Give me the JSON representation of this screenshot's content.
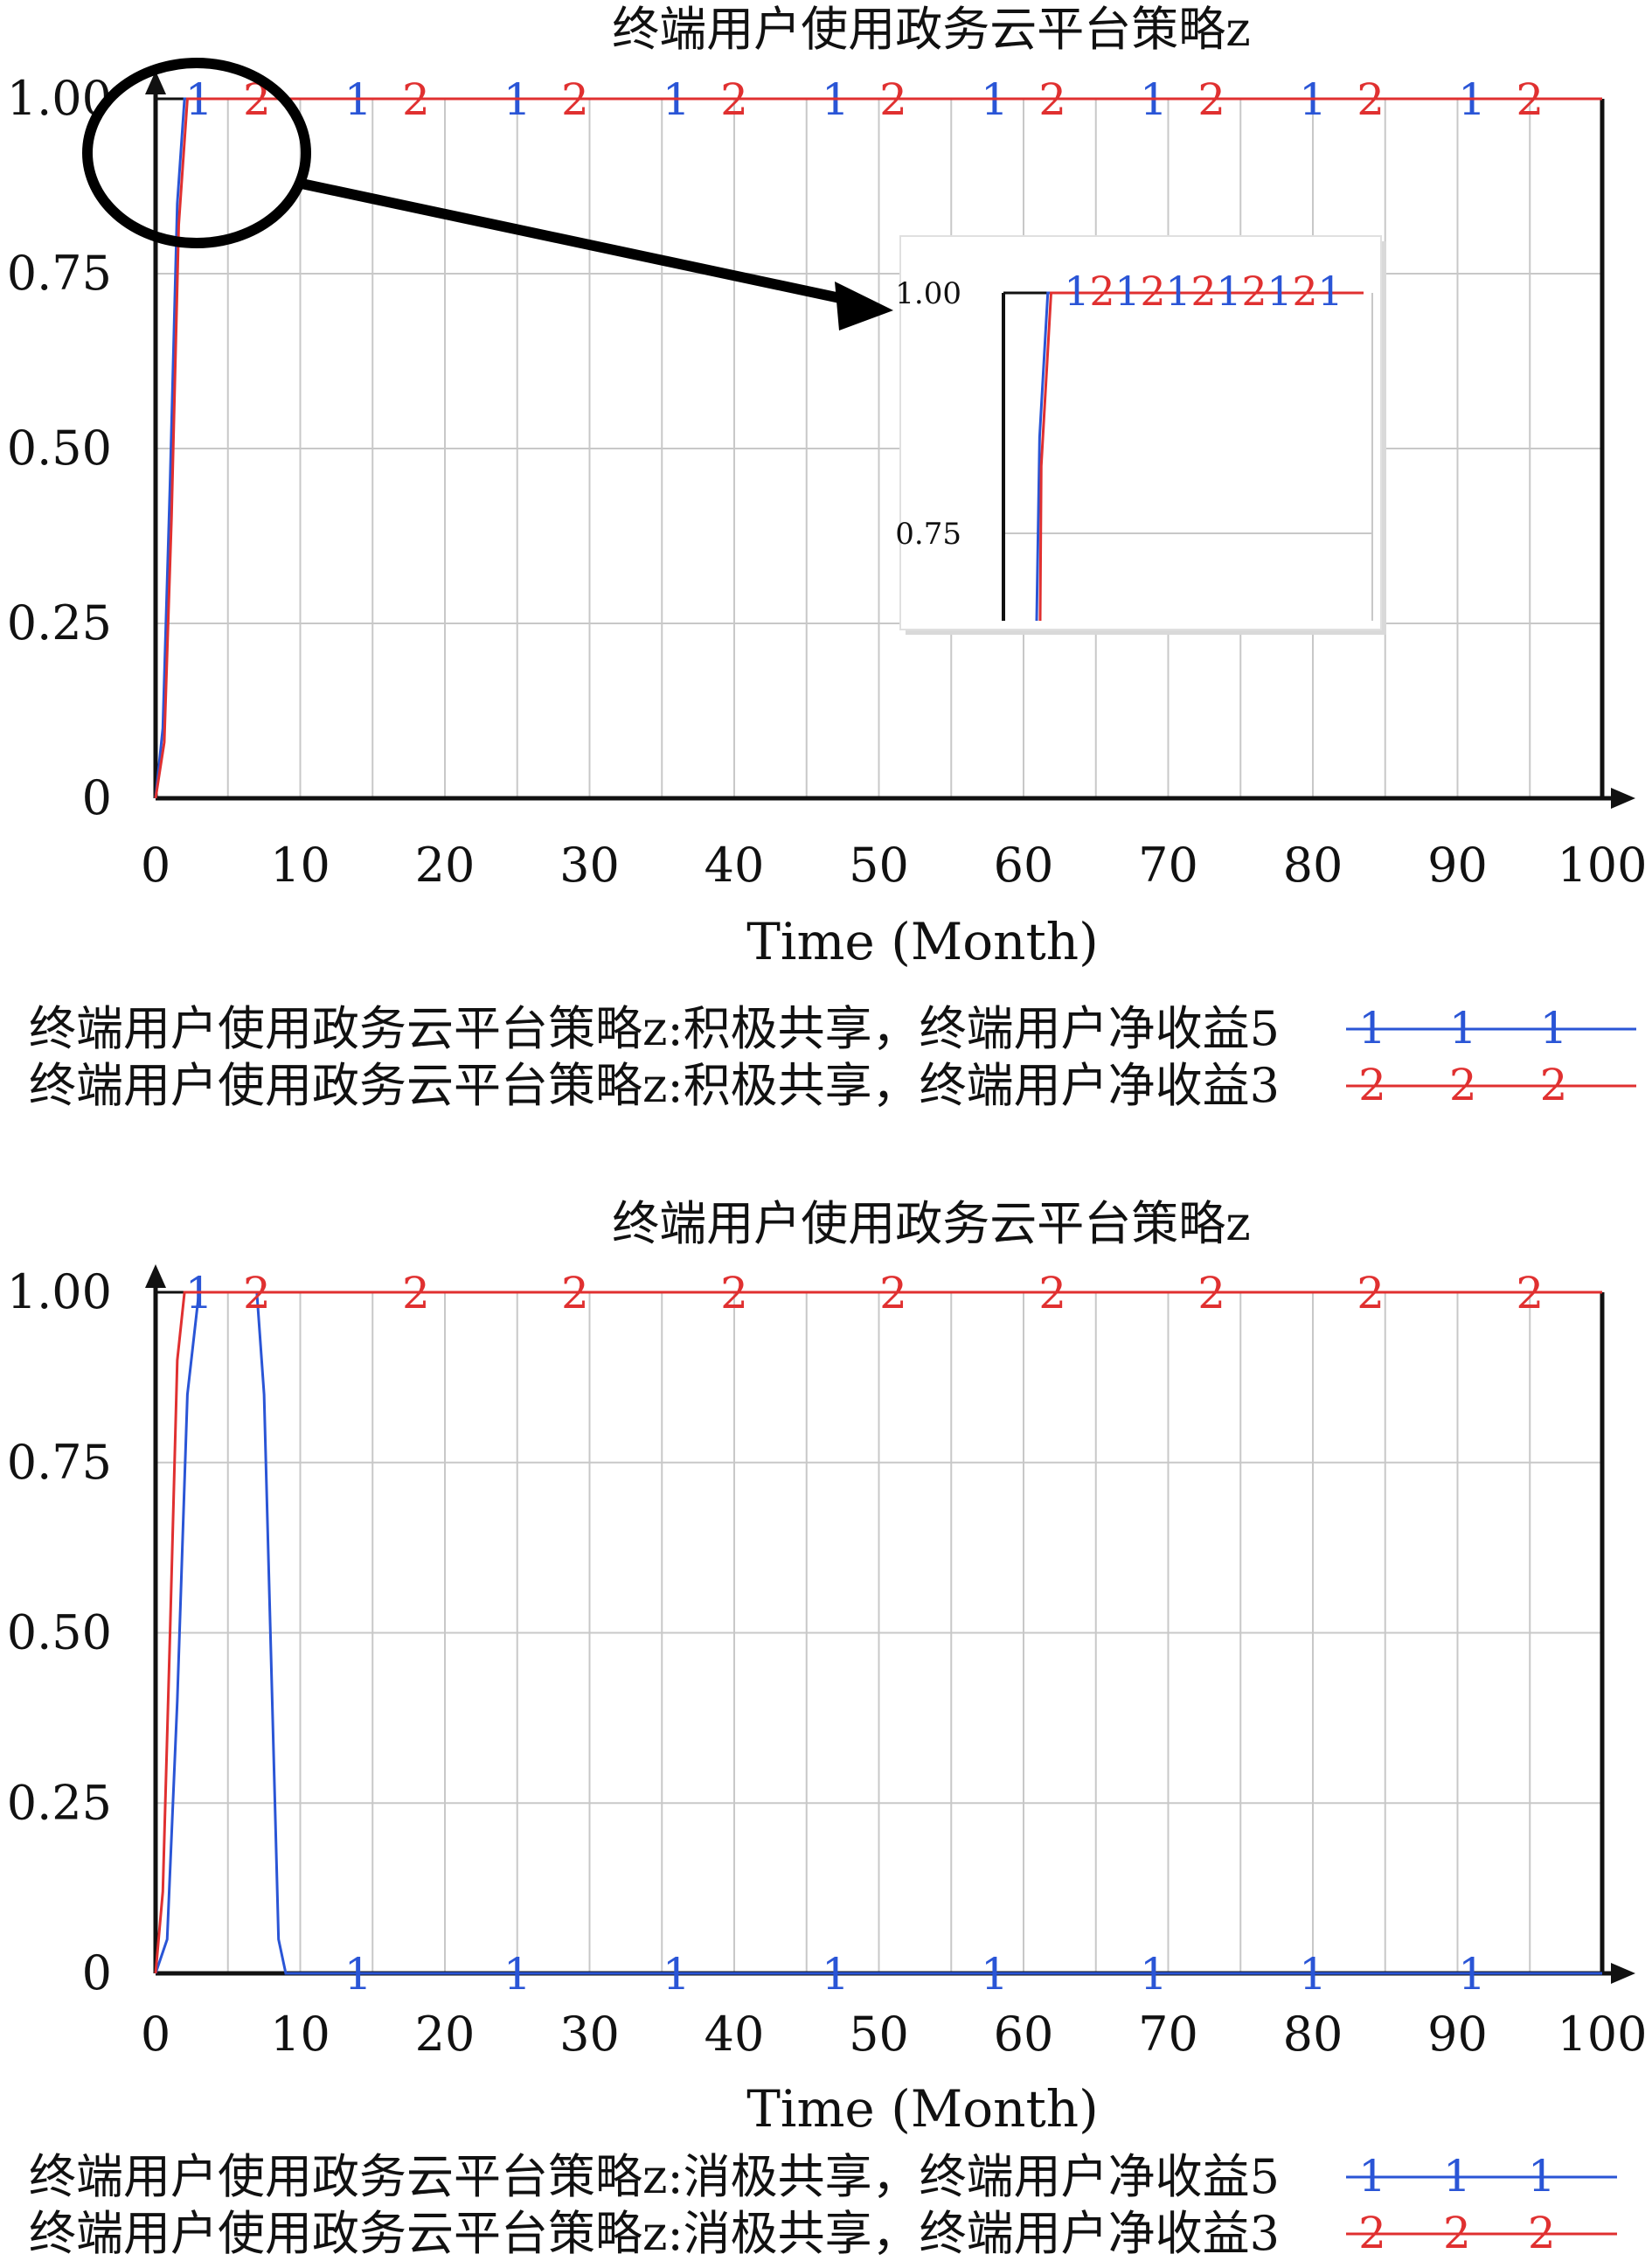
{
  "chart_data": [
    {
      "type": "line",
      "title": "终端用户使用政务云平台策略z",
      "xlabel": "Time (Month)",
      "ylabel": "",
      "xlim": [
        0,
        100
      ],
      "ylim": [
        0,
        1
      ],
      "x_ticks": [
        "0",
        "10",
        "20",
        "30",
        "40",
        "50",
        "60",
        "70",
        "80",
        "90",
        "100"
      ],
      "y_ticks": [
        "0",
        "0.25",
        "0.50",
        "0.75",
        "1.00"
      ],
      "grid": true,
      "legend_position": "bottom",
      "series": [
        {
          "name": "终端用户使用政务云平台策略z:积极共享，终端用户净收益5",
          "marker": "1",
          "color": "#2a55d6",
          "x": [
            0,
            0.5,
            1,
            1.5,
            2,
            3,
            100
          ],
          "y": [
            0,
            0.1,
            0.45,
            0.85,
            1.0,
            1.0,
            1.0
          ]
        },
        {
          "name": "终端用户使用政务云平台策略z:积极共享，终端用户净收益3",
          "marker": "2",
          "color": "#e03030",
          "x": [
            0,
            0.6,
            1.1,
            1.6,
            2.2,
            3,
            100
          ],
          "y": [
            0,
            0.08,
            0.4,
            0.82,
            1.0,
            1.0,
            1.0
          ]
        }
      ],
      "inset": {
        "y_ticks": [
          "0.75",
          "1.00"
        ]
      }
    },
    {
      "type": "line",
      "title": "终端用户使用政务云平台策略z",
      "xlabel": "Time (Month)",
      "ylabel": "",
      "xlim": [
        0,
        100
      ],
      "ylim": [
        0,
        1
      ],
      "x_ticks": [
        "0",
        "10",
        "20",
        "30",
        "40",
        "50",
        "60",
        "70",
        "80",
        "90",
        "100"
      ],
      "y_ticks": [
        "0",
        "0.25",
        "0.50",
        "0.75",
        "1.00"
      ],
      "grid": true,
      "legend_position": "bottom",
      "series": [
        {
          "name": "终端用户使用政务云平台策略z:消极共享，终端用户净收益5",
          "marker": "1",
          "color": "#2a55d6",
          "x": [
            0,
            0.8,
            1.5,
            2.2,
            3,
            7,
            7.5,
            8,
            8.5,
            9,
            100
          ],
          "y": [
            0,
            0.05,
            0.4,
            0.85,
            1.0,
            1.0,
            0.85,
            0.45,
            0.05,
            0,
            0
          ]
        },
        {
          "name": "终端用户使用政务云平台策略z:消极共享，终端用户净收益3",
          "marker": "2",
          "color": "#e03030",
          "x": [
            0,
            0.5,
            1,
            1.5,
            2,
            3,
            100
          ],
          "y": [
            0,
            0.12,
            0.5,
            0.9,
            1.0,
            1.0,
            1.0
          ]
        }
      ]
    }
  ]
}
